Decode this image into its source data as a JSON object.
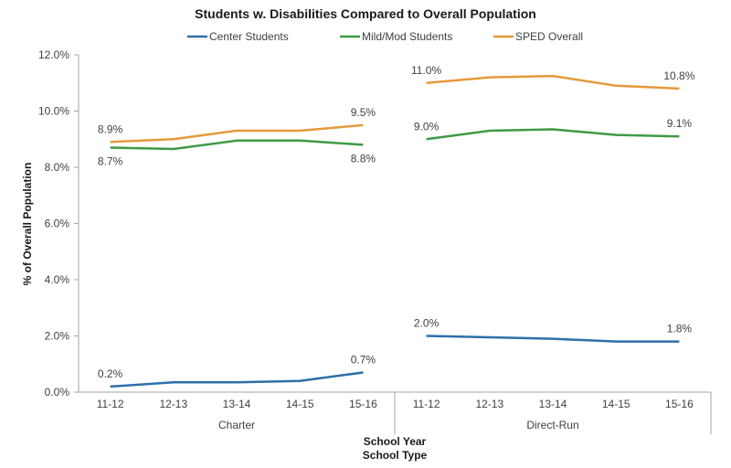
{
  "chart_data": {
    "type": "line",
    "title": "Students w. Disabilities Compared to Overall Population",
    "xlabel": [
      "School Year",
      "School Type"
    ],
    "ylabel": "% of Overall Population",
    "ylim": [
      0,
      12
    ],
    "yticks": [
      0,
      2,
      4,
      6,
      8,
      10,
      12
    ],
    "ytick_labels": [
      "0.0%",
      "2.0%",
      "4.0%",
      "6.0%",
      "8.0%",
      "10.0%",
      "12.0%"
    ],
    "legend_position": "top-center",
    "grid": false,
    "groups": [
      {
        "name": "Charter",
        "categories": [
          "11-12",
          "12-13",
          "13-14",
          "14-15",
          "15-16"
        ],
        "series": [
          {
            "name": "Center Students",
            "color": "#2e6fa7",
            "values": [
              0.2,
              0.35,
              0.35,
              0.4,
              0.7
            ],
            "labels": [
              {
                "index": 0,
                "text": "0.2%",
                "pos": "above"
              },
              {
                "index": 4,
                "text": "0.7%",
                "pos": "above"
              }
            ]
          },
          {
            "name": "Mild/Mod Students",
            "color": "#3f9a45",
            "values": [
              8.7,
              8.65,
              8.95,
              8.95,
              8.8
            ],
            "labels": [
              {
                "index": 0,
                "text": "8.7%",
                "pos": "below"
              },
              {
                "index": 4,
                "text": "8.8%",
                "pos": "below"
              }
            ]
          },
          {
            "name": "SPED Overall",
            "color": "#e39a3b",
            "values": [
              8.9,
              9.0,
              9.3,
              9.3,
              9.5
            ],
            "labels": [
              {
                "index": 0,
                "text": "8.9%",
                "pos": "above"
              },
              {
                "index": 4,
                "text": "9.5%",
                "pos": "above"
              }
            ]
          }
        ]
      },
      {
        "name": "Direct-Run",
        "categories": [
          "11-12",
          "12-13",
          "13-14",
          "14-15",
          "15-16"
        ],
        "series": [
          {
            "name": "Center Students",
            "color": "#2e6fa7",
            "values": [
              2.0,
              1.95,
              1.9,
              1.8,
              1.8
            ],
            "labels": [
              {
                "index": 0,
                "text": "2.0%",
                "pos": "above"
              },
              {
                "index": 4,
                "text": "1.8%",
                "pos": "above"
              }
            ]
          },
          {
            "name": "Mild/Mod Students",
            "color": "#3f9a45",
            "values": [
              9.0,
              9.3,
              9.35,
              9.15,
              9.1
            ],
            "labels": [
              {
                "index": 0,
                "text": "9.0%",
                "pos": "above"
              },
              {
                "index": 4,
                "text": "9.1%",
                "pos": "above"
              }
            ]
          },
          {
            "name": "SPED Overall",
            "color": "#e39a3b",
            "values": [
              11.0,
              11.2,
              11.25,
              10.9,
              10.8
            ],
            "labels": [
              {
                "index": 0,
                "text": "11.0%",
                "pos": "above"
              },
              {
                "index": 4,
                "text": "10.8%",
                "pos": "above"
              }
            ]
          }
        ]
      }
    ],
    "legend": [
      {
        "name": "Center Students",
        "color": "#2e6fa7"
      },
      {
        "name": "Mild/Mod Students",
        "color": "#3f9a45"
      },
      {
        "name": "SPED Overall",
        "color": "#e39a3b"
      }
    ]
  }
}
